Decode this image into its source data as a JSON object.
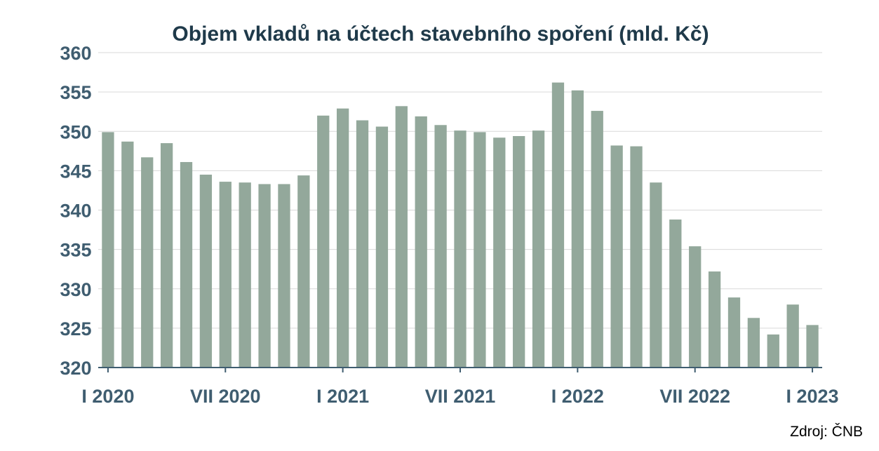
{
  "chart_data": {
    "type": "bar",
    "title": "Objem vkladů na účtech stavebního spoření (mld. Kč)",
    "source": "Zdroj: ČNB",
    "xlabel": "",
    "ylabel": "",
    "ylim": [
      320,
      360
    ],
    "yticks": [
      320,
      325,
      330,
      335,
      340,
      345,
      350,
      355,
      360
    ],
    "grid": true,
    "x_tick_labels": [
      {
        "index": 0,
        "label": "I 2020"
      },
      {
        "index": 6,
        "label": "VII 2020"
      },
      {
        "index": 12,
        "label": "I 2021"
      },
      {
        "index": 18,
        "label": "VII 2021"
      },
      {
        "index": 24,
        "label": "I 2022"
      },
      {
        "index": 30,
        "label": "VII 2022"
      },
      {
        "index": 36,
        "label": "I 2023"
      }
    ],
    "categories": [
      "I 2020",
      "II 2020",
      "III 2020",
      "IV 2020",
      "V 2020",
      "VI 2020",
      "VII 2020",
      "VIII 2020",
      "IX 2020",
      "X 2020",
      "XI 2020",
      "XII 2020",
      "I 2021",
      "II 2021",
      "III 2021",
      "IV 2021",
      "V 2021",
      "VI 2021",
      "VII 2021",
      "VIII 2021",
      "IX 2021",
      "X 2021",
      "XI 2021",
      "XII 2021",
      "I 2022",
      "II 2022",
      "III 2022",
      "IV 2022",
      "V 2022",
      "VI 2022",
      "VII 2022",
      "VIII 2022",
      "IX 2022",
      "X 2022",
      "XI 2022",
      "XII 2022",
      "I 2023"
    ],
    "values": [
      349.9,
      348.7,
      346.7,
      348.5,
      346.1,
      344.5,
      343.6,
      343.5,
      343.3,
      343.3,
      344.4,
      352.0,
      352.9,
      351.4,
      350.6,
      353.2,
      351.9,
      350.8,
      350.1,
      349.9,
      349.2,
      349.4,
      350.1,
      356.2,
      355.2,
      352.6,
      348.2,
      348.1,
      343.5,
      338.8,
      335.4,
      332.2,
      328.9,
      326.3,
      324.2,
      328.0,
      325.4
    ],
    "bar_color": "#93a89b",
    "grid_color": "#d9d9d9",
    "axis_color": "#3f5d70"
  }
}
